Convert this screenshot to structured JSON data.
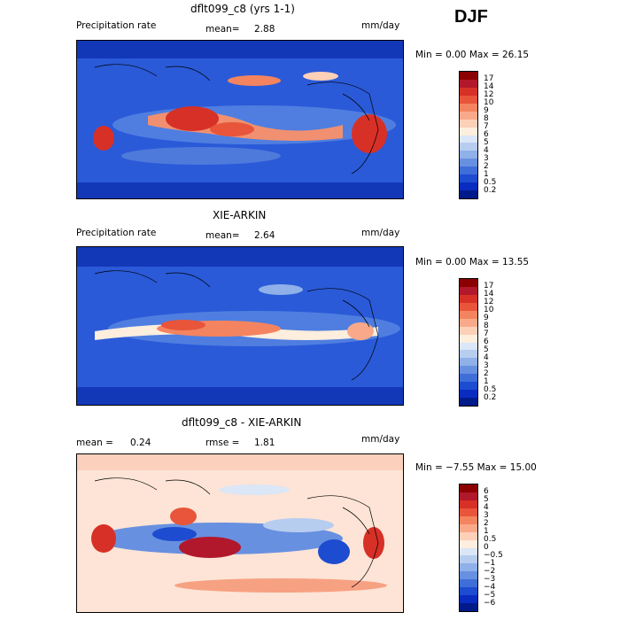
{
  "season": "DJF",
  "panels": [
    {
      "title": "dflt099_c8 (yrs 1-1)",
      "left_label": "Precipitation rate",
      "mid_label": "mean=",
      "mid_value": "2.88",
      "right_label": "mm/day",
      "min_max": "Min =    0.00 Max =  26.15",
      "colorbar_labels": [
        "17",
        "14",
        "12",
        "10",
        "9",
        "8",
        "7",
        "6",
        "5",
        "4",
        "3",
        "2",
        "1",
        "0.5",
        "0.2"
      ],
      "colorbar_colors": [
        "#8b0000",
        "#b2182b",
        "#d73027",
        "#e8553a",
        "#f4845f",
        "#f9a98a",
        "#fdd0b8",
        "#fdeedd",
        "#dbe6f6",
        "#b7cdef",
        "#8fb0e8",
        "#6890e0",
        "#3f6ed8",
        "#1d4cd0",
        "#0a2bc0",
        "#001a8a"
      ]
    },
    {
      "title": "XIE-ARKIN",
      "left_label": "Precipitation rate",
      "mid_label": "mean=",
      "mid_value": "2.64",
      "right_label": "mm/day",
      "min_max": "Min =    0.00 Max =  13.55",
      "colorbar_labels": [
        "17",
        "14",
        "12",
        "10",
        "9",
        "8",
        "7",
        "6",
        "5",
        "4",
        "3",
        "2",
        "1",
        "0.5",
        "0.2"
      ],
      "colorbar_colors": [
        "#8b0000",
        "#b2182b",
        "#d73027",
        "#e8553a",
        "#f4845f",
        "#f9a98a",
        "#fdd0b8",
        "#fdeedd",
        "#dbe6f6",
        "#b7cdef",
        "#8fb0e8",
        "#6890e0",
        "#3f6ed8",
        "#1d4cd0",
        "#0a2bc0",
        "#001a8a"
      ]
    },
    {
      "title": "dflt099_c8 - XIE-ARKIN",
      "left_label": "mean =",
      "left_value": "0.24",
      "mid_label": "rmse =",
      "mid_value": "1.81",
      "right_label": "mm/day",
      "min_max": "Min =  −7.55 Max =  15.00",
      "colorbar_labels": [
        "6",
        "5",
        "4",
        "3",
        "2",
        "1",
        "0.5",
        "0",
        "−0.5",
        "−1",
        "−2",
        "−3",
        "−4",
        "−5",
        "−6"
      ],
      "colorbar_colors": [
        "#8b0000",
        "#b2182b",
        "#d73027",
        "#e8553a",
        "#f4845f",
        "#f9a98a",
        "#fdd0b8",
        "#fdeedd",
        "#dbe6f6",
        "#b7cdef",
        "#8fb0e8",
        "#6890e0",
        "#3f6ed8",
        "#1d4cd0",
        "#0a2bc0",
        "#001a8a"
      ]
    }
  ]
}
